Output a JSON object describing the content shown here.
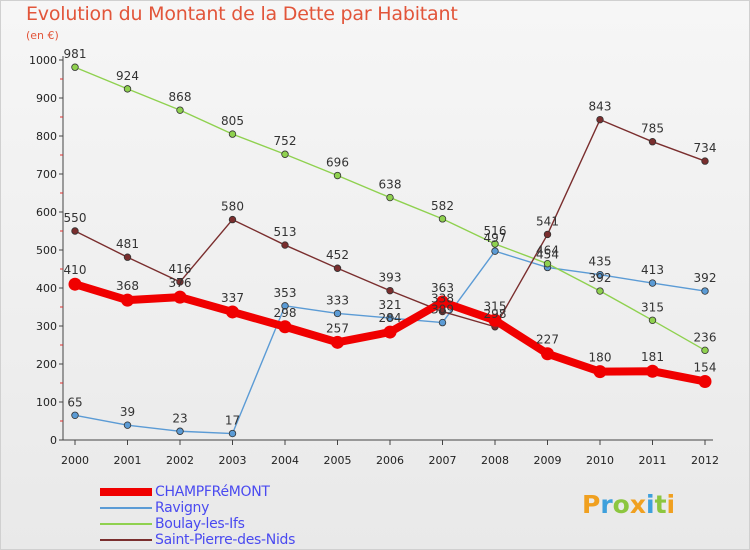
{
  "header": {
    "title": "Evolution du Montant de la Dette par Habitant",
    "unit": "(en €)"
  },
  "logo": {
    "text": "Proxiti",
    "colors": [
      "#f0a020",
      "#3ea0dc",
      "#8cc63f",
      "#f0a020",
      "#3ea0dc",
      "#8cc63f",
      "#f0a020"
    ]
  },
  "chart_data": {
    "type": "line",
    "x": [
      "2000",
      "2001",
      "2002",
      "2003",
      "2004",
      "2005",
      "2006",
      "2007",
      "2008",
      "2009",
      "2010",
      "2011",
      "2012"
    ],
    "ylim": [
      0,
      1000
    ],
    "yticks": [
      "0",
      "100",
      "200",
      "300",
      "400",
      "500",
      "600",
      "700",
      "800",
      "900",
      "1000"
    ],
    "grid": false,
    "legend_position": "bottom-left",
    "series": [
      {
        "name": "CHAMPFRéMONT",
        "color": "#f00000",
        "values": [
          410,
          368,
          376,
          337,
          298,
          257,
          284,
          363,
          315,
          227,
          180,
          181,
          154
        ],
        "labels": [
          "410",
          "368",
          "376",
          "337",
          "298",
          "257",
          "284",
          "363",
          "315",
          "227",
          "180",
          "181",
          "154"
        ]
      },
      {
        "name": "Ravigny",
        "color": "#5b9bd5",
        "values": [
          65,
          39,
          23,
          17,
          353,
          333,
          321,
          309,
          497,
          454,
          435,
          413,
          392
        ],
        "labels": [
          "65",
          "39",
          "23",
          "17",
          "353",
          "333",
          "321",
          "309",
          "497",
          "454",
          "435",
          "413",
          "392"
        ]
      },
      {
        "name": "Boulay-les-Ifs",
        "color": "#8fd14f",
        "values": [
          981,
          924,
          868,
          805,
          752,
          696,
          638,
          582,
          516,
          464,
          392,
          315,
          236
        ],
        "labels": [
          "981",
          "924",
          "868",
          "805",
          "752",
          "696",
          "638",
          "582",
          "516",
          "464",
          "392",
          "315",
          "236"
        ]
      },
      {
        "name": "Saint-Pierre-des-Nids",
        "color": "#7a2e2e",
        "values": [
          550,
          481,
          416,
          580,
          513,
          452,
          393,
          338,
          298,
          541,
          843,
          785,
          734
        ],
        "labels": [
          "550",
          "481",
          "416",
          "580",
          "513",
          "452",
          "393",
          "338",
          "298",
          "541",
          "843",
          "785",
          "734"
        ]
      }
    ]
  }
}
